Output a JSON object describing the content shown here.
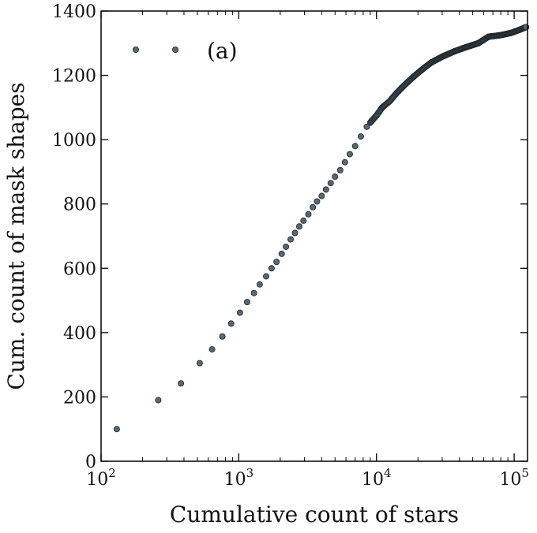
{
  "chart_data": {
    "type": "scatter",
    "xlabel": "Cumulative count of stars",
    "ylabel": "Cum. count of mask shapes",
    "xscale": "log",
    "xlim": [
      100,
      125000
    ],
    "ylim": [
      0,
      1400
    ],
    "x_ticks": [
      {
        "value": 100,
        "base": "10",
        "exp": "2"
      },
      {
        "value": 1000,
        "base": "10",
        "exp": "3"
      },
      {
        "value": 10000,
        "base": "10",
        "exp": "4"
      },
      {
        "value": 100000,
        "base": "10",
        "exp": "5"
      }
    ],
    "y_ticks": [
      0,
      200,
      400,
      600,
      800,
      1000,
      1200,
      1400
    ],
    "grid": false,
    "legend": {
      "label": "(a)",
      "placement": "top-left"
    },
    "marker_color": "#5a6670",
    "series": [
      {
        "x": [
          130,
          260,
          380,
          520,
          640,
          760,
          880,
          1020,
          1150,
          1290,
          1420,
          1580,
          1730,
          1880,
          2050,
          2200,
          2380,
          2560,
          2750,
          2950,
          3200,
          3450,
          3700,
          4000,
          4300,
          4650,
          5000,
          5450,
          5900,
          6400,
          7000,
          7700,
          8500,
          9300,
          10000,
          11000,
          12500,
          14000,
          16000,
          18500,
          21000,
          25000,
          30000,
          37000,
          45000,
          55000,
          65000,
          80000,
          95000,
          110000,
          122000
        ],
        "y": [
          100,
          190,
          242,
          305,
          348,
          388,
          428,
          462,
          495,
          523,
          550,
          575,
          600,
          620,
          645,
          667,
          690,
          710,
          730,
          748,
          768,
          790,
          808,
          825,
          845,
          865,
          885,
          905,
          930,
          955,
          980,
          1010,
          1040,
          1060,
          1075,
          1100,
          1120,
          1145,
          1170,
          1195,
          1215,
          1240,
          1258,
          1275,
          1288,
          1300,
          1320,
          1325,
          1332,
          1342,
          1350
        ]
      }
    ]
  }
}
